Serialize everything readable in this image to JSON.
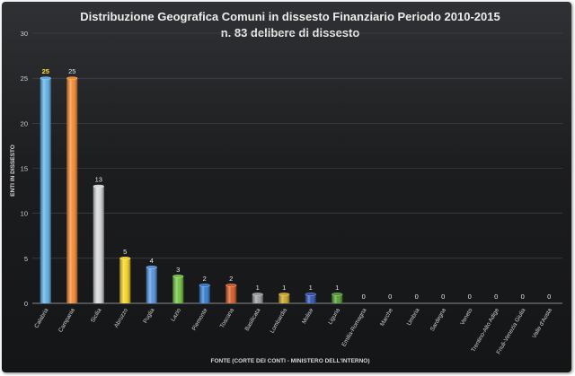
{
  "chart_data": {
    "type": "bar",
    "title": "Distribuzione Geografica Comuni in dissesto Finanziario Periodo 2010-2015",
    "subtitle": "n. 83 delibere di dissesto",
    "xlabel": "FONTE (CORTE DEI CONTI - MINISTERO DELL'INTERNO)",
    "ylabel": "ENTI IN DISSESTO",
    "ylim": [
      0,
      30
    ],
    "yticks": [
      0,
      5,
      10,
      15,
      20,
      25,
      30
    ],
    "grid": true,
    "legend": "none",
    "categories": [
      "Calabria",
      "Campania",
      "Sicilia",
      "Abruzzo",
      "Puglia",
      "Lazio",
      "Piemonte",
      "Toscana",
      "Basilicata",
      "Lombardia",
      "Molise",
      "Liguria",
      "Emilia-Romagna",
      "Marche",
      "Umbria",
      "Sardegna",
      "Veneto",
      "Trentino-Alto Adige",
      "Friuli-Venezia Giulia",
      "Valle d'Aosta"
    ],
    "values": [
      25,
      25,
      13,
      5,
      4,
      3,
      2,
      2,
      1,
      1,
      1,
      1,
      0,
      0,
      0,
      0,
      0,
      0,
      0,
      0
    ],
    "data_labels": [
      "25",
      "25",
      "13",
      "5",
      "4",
      "3",
      "2",
      "2",
      "1",
      "1",
      "1",
      "1",
      "0",
      "0",
      "0",
      "0",
      "0",
      "0",
      "0",
      "0"
    ],
    "highlight_label_color": "#ffe033",
    "colors": [
      "#5aaee8",
      "#f5872a",
      "#d6d6d6",
      "#f7d31a",
      "#4f90e0",
      "#6ec13c",
      "#2e78d2",
      "#d5561f",
      "#9a9a9a",
      "#c8a21e",
      "#2b4fb2",
      "#4e9a2a",
      "#888888",
      "#888888",
      "#888888",
      "#888888",
      "#888888",
      "#888888",
      "#888888",
      "#888888"
    ]
  }
}
